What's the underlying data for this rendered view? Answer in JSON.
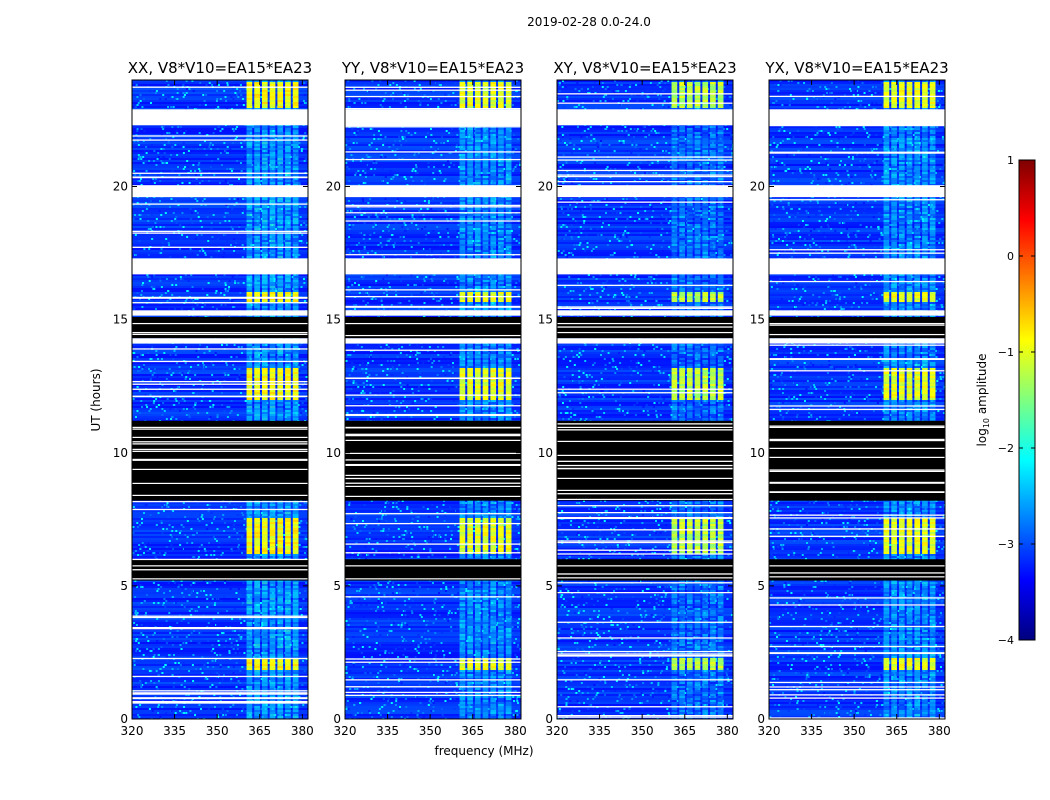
{
  "chart_data": {
    "type": "heatmap",
    "suptitle": "2019-02-28 0.0-24.0",
    "xlabel": "frequency (MHz)",
    "ylabel": "UT (hours)",
    "xlim": [
      320,
      382
    ],
    "ylim": [
      0,
      24
    ],
    "xticks": [
      320,
      335,
      350,
      365,
      380
    ],
    "xtick_labels": [
      "320",
      "335",
      "350",
      "365",
      "380"
    ],
    "yticks": [
      0,
      5,
      10,
      15,
      20
    ],
    "ytick_labels": [
      "0",
      "5",
      "10",
      "15",
      "20"
    ],
    "colorbar": {
      "label": "log10 amplitude",
      "label_main": "log",
      "label_sub": "10",
      "label_rest": " amplitude",
      "range": [
        -4,
        1
      ],
      "ticks": [
        1,
        0,
        -1,
        -2,
        -3,
        -4
      ],
      "tick_labels": [
        "1",
        "0",
        "−1",
        "−2",
        "−3",
        "−4"
      ],
      "colormap": "jet",
      "stops": [
        "#00007f",
        "#0000ff",
        "#007fff",
        "#00ffff",
        "#7fff7f",
        "#ffff00",
        "#ff7f00",
        "#ff0000",
        "#7f0000"
      ]
    },
    "band": {
      "rfi_range_mhz": [
        360,
        379
      ],
      "description": "bright RFI channels"
    },
    "panels": [
      {
        "title": "XX, V8*V10=EA15*EA23",
        "polarization": "XX",
        "rfi_level": -1.2
      },
      {
        "title": "YY, V8*V10=EA15*EA23",
        "polarization": "YY",
        "rfi_level": -1.3
      },
      {
        "title": "XY, V8*V10=EA15*EA23",
        "polarization": "XY",
        "rfi_level": -1.5
      },
      {
        "title": "YX, V8*V10=EA15*EA23",
        "polarization": "YX",
        "rfi_level": -1.3
      }
    ],
    "flagged_blank_hours": [
      [
        22.3,
        22.9
      ],
      [
        19.6,
        20.05
      ],
      [
        16.7,
        17.3
      ],
      [
        15.15,
        15.35
      ],
      [
        14.1,
        14.3
      ]
    ],
    "no_data_hours": [
      [
        8.2,
        11.2
      ],
      [
        5.2,
        6.0
      ],
      [
        14.3,
        15.1
      ]
    ]
  }
}
